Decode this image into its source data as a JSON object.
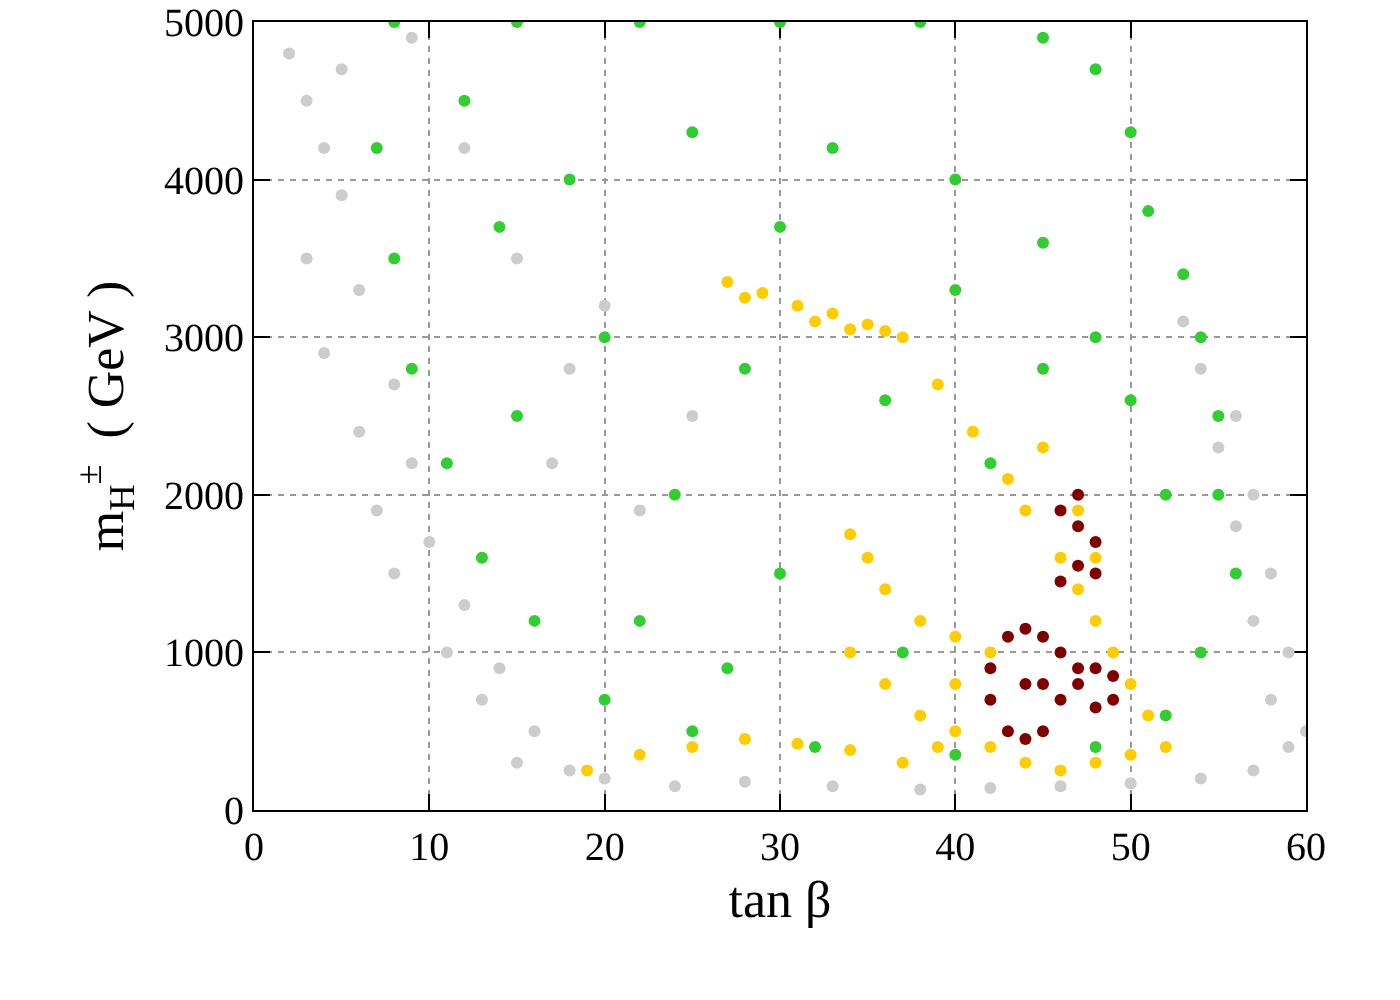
{
  "chart_data": {
    "type": "scatter",
    "xlabel": "tan β",
    "ylabel": "m$_{H}$$^{±}$  ( GeV )",
    "xlim": [
      0,
      60
    ],
    "xticks": [
      0,
      10,
      20,
      30,
      40,
      50,
      60
    ],
    "ylim": [
      0,
      5000
    ],
    "yticks": [
      0,
      1000,
      2000,
      3000,
      4000,
      5000
    ],
    "grid": "dotted",
    "marker": "circle",
    "series": [
      {
        "color": "#cccccc",
        "x": [
          2,
          3,
          4,
          5,
          3,
          6,
          4,
          8,
          6,
          9,
          7,
          10,
          8,
          12,
          11,
          14,
          13,
          16,
          15,
          18,
          20,
          24,
          28,
          33,
          38,
          42,
          46,
          50,
          54,
          57,
          59,
          60,
          58,
          59,
          57,
          58,
          56,
          57,
          55,
          56,
          54,
          53,
          9,
          5,
          12,
          15,
          18,
          17,
          22,
          20,
          25
        ],
        "values": [
          4800,
          4500,
          4200,
          3900,
          3500,
          3300,
          2900,
          2700,
          2400,
          2200,
          1900,
          1700,
          1500,
          1300,
          1000,
          900,
          700,
          500,
          300,
          250,
          200,
          150,
          180,
          150,
          130,
          140,
          150,
          170,
          200,
          250,
          400,
          500,
          700,
          1000,
          1200,
          1500,
          1800,
          2000,
          2300,
          2500,
          2800,
          3100,
          4900,
          4700,
          4200,
          3500,
          2800,
          2200,
          1900,
          3200,
          2500
        ]
      },
      {
        "color": "#33cc33",
        "x": [
          8,
          15,
          22,
          30,
          38,
          45,
          48,
          50,
          51,
          53,
          54,
          55,
          55,
          56,
          54,
          52,
          48,
          40,
          32,
          25,
          20,
          16,
          13,
          11,
          9,
          8,
          7,
          12,
          18,
          25,
          33,
          40,
          45,
          48,
          50,
          52,
          20,
          28,
          36,
          42,
          15,
          24,
          30,
          22,
          27,
          37,
          45,
          40,
          14,
          30
        ],
        "values": [
          5000,
          5000,
          5000,
          5000,
          5000,
          4900,
          4700,
          4300,
          3800,
          3400,
          3000,
          2500,
          2000,
          1500,
          1000,
          600,
          400,
          350,
          400,
          500,
          700,
          1200,
          1600,
          2200,
          2800,
          3500,
          4200,
          4500,
          4000,
          4300,
          4200,
          4000,
          3600,
          3000,
          2600,
          2000,
          3000,
          2800,
          2600,
          2200,
          2500,
          2000,
          1500,
          1200,
          900,
          1000,
          2800,
          3300,
          3700,
          3700
        ]
      },
      {
        "color": "#ffcc00",
        "x": [
          27,
          29,
          31,
          33,
          35,
          36,
          28,
          32,
          34,
          37,
          39,
          41,
          43,
          44,
          46,
          47,
          48,
          49,
          45,
          47,
          48,
          34,
          35,
          36,
          38,
          40,
          34,
          36,
          38,
          40,
          42,
          44,
          46,
          48,
          50,
          52,
          51,
          50,
          42,
          40,
          39,
          19,
          22,
          25,
          28,
          31,
          34,
          37
        ],
        "values": [
          3350,
          3280,
          3200,
          3150,
          3080,
          3040,
          3250,
          3100,
          3050,
          3000,
          2700,
          2400,
          2100,
          1900,
          1600,
          1400,
          1200,
          1000,
          2300,
          1900,
          1600,
          1750,
          1600,
          1400,
          1200,
          1100,
          1000,
          800,
          600,
          500,
          400,
          300,
          250,
          300,
          350,
          400,
          600,
          800,
          1000,
          800,
          400,
          250,
          350,
          400,
          450,
          420,
          380,
          300
        ]
      },
      {
        "color": "#800000",
        "x": [
          43,
          44,
          45,
          46,
          47,
          46,
          45,
          44,
          43,
          42,
          42,
          44,
          45,
          48,
          49,
          48,
          49,
          47,
          46,
          47,
          47,
          48,
          46,
          47,
          48
        ],
        "values": [
          1100,
          1150,
          1100,
          1000,
          900,
          700,
          500,
          450,
          500,
          700,
          900,
          800,
          800,
          900,
          850,
          650,
          700,
          800,
          1450,
          1550,
          1800,
          1700,
          1900,
          2000,
          1500
        ]
      }
    ]
  }
}
